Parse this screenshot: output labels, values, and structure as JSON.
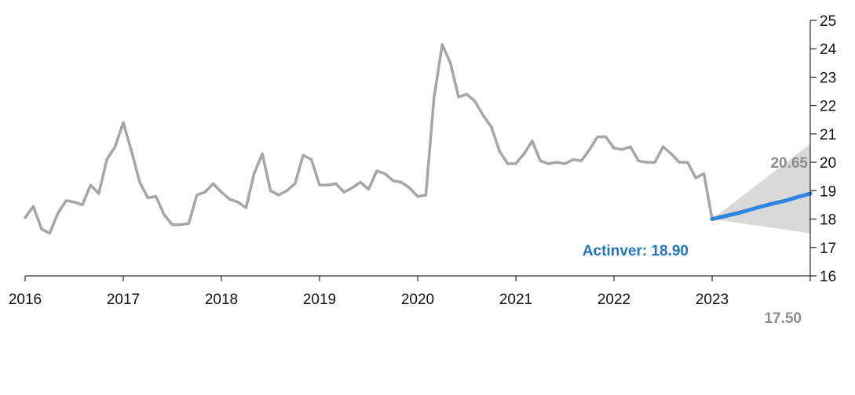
{
  "chart_data": {
    "type": "line",
    "y_axis_position": "right",
    "ylim": [
      16,
      25
    ],
    "y_ticks": [
      16,
      17,
      18,
      19,
      20,
      21,
      22,
      23,
      24,
      25
    ],
    "x_ticks": [
      {
        "label": "2016",
        "value": 2016
      },
      {
        "label": "2017",
        "value": 2017
      },
      {
        "label": "2018",
        "value": 2018
      },
      {
        "label": "2019",
        "value": 2019
      },
      {
        "label": "2020",
        "value": 2020
      },
      {
        "label": "2021",
        "value": 2021
      },
      {
        "label": "2022",
        "value": 2022
      },
      {
        "label": "2023",
        "value": 2023
      }
    ],
    "xlim": [
      2016,
      2024
    ],
    "grid": false,
    "colors": {
      "history": "#a6a6a6",
      "forecast": "#2e86de",
      "band": "#d9d9d9",
      "annotation_blue": "#1f77c9",
      "annotation_gray": "#8c8c8c"
    },
    "series": [
      {
        "role": "history",
        "x": [
          2016.0,
          2016.083,
          2016.167,
          2016.25,
          2016.333,
          2016.417,
          2016.5,
          2016.583,
          2016.667,
          2016.75,
          2016.833,
          2016.917,
          2017.0,
          2017.083,
          2017.167,
          2017.25,
          2017.333,
          2017.417,
          2017.5,
          2017.583,
          2017.667,
          2017.75,
          2017.833,
          2017.917,
          2018.0,
          2018.083,
          2018.167,
          2018.25,
          2018.333,
          2018.417,
          2018.5,
          2018.583,
          2018.667,
          2018.75,
          2018.833,
          2018.917,
          2019.0,
          2019.083,
          2019.167,
          2019.25,
          2019.333,
          2019.417,
          2019.5,
          2019.583,
          2019.667,
          2019.75,
          2019.833,
          2019.917,
          2020.0,
          2020.083,
          2020.167,
          2020.25,
          2020.333,
          2020.417,
          2020.5,
          2020.583,
          2020.667,
          2020.75,
          2020.833,
          2020.917,
          2021.0,
          2021.083,
          2021.167,
          2021.25,
          2021.333,
          2021.417,
          2021.5,
          2021.583,
          2021.667,
          2021.75,
          2021.833,
          2021.917,
          2022.0,
          2022.083,
          2022.167,
          2022.25,
          2022.333,
          2022.417,
          2022.5,
          2022.583,
          2022.667,
          2022.75,
          2022.833,
          2022.917,
          2023.0
        ],
        "values": [
          18.05,
          18.45,
          17.65,
          17.5,
          18.2,
          18.65,
          18.6,
          18.5,
          19.2,
          18.9,
          20.1,
          20.55,
          21.4,
          20.4,
          19.3,
          18.75,
          18.8,
          18.15,
          17.8,
          17.8,
          17.85,
          18.85,
          18.95,
          19.25,
          18.95,
          18.7,
          18.6,
          18.4,
          19.6,
          20.3,
          19.0,
          18.85,
          19.0,
          19.25,
          20.25,
          20.1,
          19.2,
          19.2,
          19.25,
          18.95,
          19.1,
          19.3,
          19.05,
          19.7,
          19.6,
          19.35,
          19.3,
          19.1,
          18.8,
          18.85,
          22.3,
          24.15,
          23.5,
          22.3,
          22.4,
          22.15,
          21.65,
          21.25,
          20.4,
          19.95,
          19.95,
          20.3,
          20.75,
          20.05,
          19.95,
          20.0,
          19.95,
          20.1,
          20.05,
          20.45,
          20.9,
          20.9,
          20.5,
          20.45,
          20.55,
          20.05,
          20.0,
          20.0,
          20.55,
          20.3,
          20.0,
          20.0,
          19.45,
          19.6,
          18.0
        ]
      },
      {
        "role": "forecast",
        "x": [
          2023.0,
          2023.125,
          2023.25,
          2023.375,
          2023.5,
          2023.625,
          2023.75,
          2023.875,
          2024.0
        ],
        "values": [
          18.0,
          18.1,
          18.2,
          18.32,
          18.44,
          18.55,
          18.65,
          18.78,
          18.9
        ]
      }
    ],
    "band": {
      "x": [
        2023.0,
        2024.0
      ],
      "lower": [
        18.0,
        17.5
      ],
      "upper": [
        18.0,
        20.65
      ]
    },
    "annotations": [
      {
        "id": "forecast",
        "text": "Actinver: 18.90"
      },
      {
        "id": "upper",
        "text": "20.65"
      },
      {
        "id": "lower",
        "text": "17.50"
      }
    ]
  }
}
